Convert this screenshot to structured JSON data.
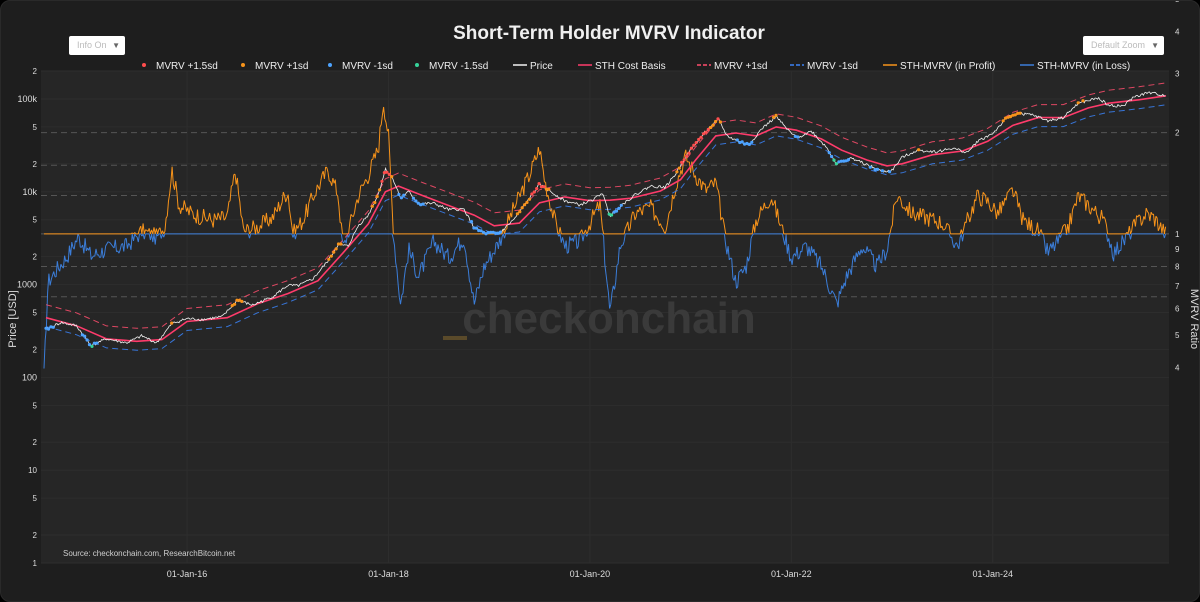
{
  "controls": {
    "left_dropdown": "Info On",
    "right_dropdown": "Default Zoom"
  },
  "watermark": "checkonchain",
  "source": "Source: checkonchain.com, ResearchBitcoin.net",
  "colors": {
    "background": "#1e1e1e",
    "plot_bg": "#262626",
    "price": "#f2f2f2",
    "cost_basis": "#ff3b6b",
    "band_upper": "#ff4d6d",
    "band_lower": "#3b82f6",
    "profit": "#f7931a",
    "loss": "#3b7dd8",
    "plus15": "#ff4d4d",
    "plus1": "#f7931a",
    "minus1": "#4da3ff",
    "minus15": "#36d39a"
  },
  "chart_data": {
    "type": "line",
    "title": "Short-Term Holder MVRV Indicator",
    "ylabel": "Price [USD]",
    "y2label": "MVRV Ratio",
    "x_ticks": [
      "01-Jan-16",
      "01-Jan-18",
      "01-Jan-20",
      "01-Jan-22",
      "01-Jan-24"
    ],
    "x_range": [
      2014.55,
      2025.75
    ],
    "y_left_range": [
      1,
      200000
    ],
    "y_left_ticks": [
      {
        "v": 1,
        "l": "1"
      },
      {
        "v": 2,
        "l": "2"
      },
      {
        "v": 5,
        "l": "5"
      },
      {
        "v": 10,
        "l": "10"
      },
      {
        "v": 20,
        "l": "2"
      },
      {
        "v": 50,
        "l": "5"
      },
      {
        "v": 100,
        "l": "100"
      },
      {
        "v": 200,
        "l": "2"
      },
      {
        "v": 500,
        "l": "5"
      },
      {
        "v": 1000,
        "l": "1000"
      },
      {
        "v": 2000,
        "l": "2"
      },
      {
        "v": 5000,
        "l": "5"
      },
      {
        "v": 10000,
        "l": "10k"
      },
      {
        "v": 20000,
        "l": "2"
      },
      {
        "v": 50000,
        "l": "5"
      },
      {
        "v": 100000,
        "l": "100k"
      },
      {
        "v": 200000,
        "l": "2"
      }
    ],
    "y_right_range": [
      0.105,
      3.05
    ],
    "y_right_ticks": [
      {
        "v": 4,
        "l": "4"
      },
      {
        "v": 5,
        "l": "5"
      },
      {
        "v": 6,
        "l": "6"
      },
      {
        "v": 7,
        "l": "7"
      },
      {
        "v": 8,
        "l": "8"
      },
      {
        "v": 9,
        "l": "9"
      },
      {
        "v": 10,
        "l": "10"
      }
    ],
    "y_right_ticks_lower": [
      {
        "v": 0.4,
        "l": "4"
      },
      {
        "v": 0.5,
        "l": "5"
      },
      {
        "v": 0.6,
        "l": "6"
      },
      {
        "v": 0.7,
        "l": "7"
      },
      {
        "v": 0.8,
        "l": "8"
      },
      {
        "v": 0.9,
        "l": "9"
      },
      {
        "v": 1,
        "l": "1"
      },
      {
        "v": 2,
        "l": "2"
      },
      {
        "v": 3,
        "l": "3"
      }
    ],
    "mvrv_reference_lines": [
      2.0,
      1.6,
      1.3,
      1.0,
      0.8,
      0.65
    ],
    "legend": [
      {
        "label": "MVRV +1.5sd",
        "kind": "dot",
        "color": "#ff4d4d"
      },
      {
        "label": "MVRV +1sd",
        "kind": "dot",
        "color": "#f7931a"
      },
      {
        "label": "MVRV -1sd",
        "kind": "dot",
        "color": "#4da3ff"
      },
      {
        "label": "MVRV -1.5sd",
        "kind": "dot",
        "color": "#36d39a"
      },
      {
        "label": "Price",
        "kind": "line",
        "color": "#f2f2f2"
      },
      {
        "label": "STH Cost Basis",
        "kind": "line",
        "color": "#ff3b6b"
      },
      {
        "label": "MVRV +1sd",
        "kind": "dash",
        "color": "#ff4d6d"
      },
      {
        "label": "MVRV -1sd",
        "kind": "dash",
        "color": "#3b82f6"
      },
      {
        "label": "STH-MVRV (in Profit)",
        "kind": "line",
        "color": "#f7931a"
      },
      {
        "label": "STH-MVRV (in Loss)",
        "kind": "line",
        "color": "#3b7dd8"
      }
    ],
    "price_series": [
      [
        2014.6,
        330
      ],
      [
        2014.75,
        390
      ],
      [
        2014.9,
        360
      ],
      [
        2015.05,
        220
      ],
      [
        2015.2,
        260
      ],
      [
        2015.4,
        235
      ],
      [
        2015.55,
        280
      ],
      [
        2015.7,
        235
      ],
      [
        2015.85,
        380
      ],
      [
        2016.0,
        430
      ],
      [
        2016.15,
        420
      ],
      [
        2016.35,
        450
      ],
      [
        2016.5,
        680
      ],
      [
        2016.65,
        600
      ],
      [
        2016.85,
        740
      ],
      [
        2017.0,
        980
      ],
      [
        2017.1,
        970
      ],
      [
        2017.25,
        1150
      ],
      [
        2017.4,
        1800
      ],
      [
        2017.5,
        2700
      ],
      [
        2017.6,
        2600
      ],
      [
        2017.7,
        4300
      ],
      [
        2017.8,
        5600
      ],
      [
        2017.9,
        9500
      ],
      [
        2017.97,
        17500
      ],
      [
        2018.05,
        13500
      ],
      [
        2018.12,
        8500
      ],
      [
        2018.2,
        10000
      ],
      [
        2018.3,
        7400
      ],
      [
        2018.45,
        7500
      ],
      [
        2018.6,
        6400
      ],
      [
        2018.75,
        6500
      ],
      [
        2018.85,
        4100
      ],
      [
        2018.95,
        3600
      ],
      [
        2019.1,
        3550
      ],
      [
        2019.25,
        5100
      ],
      [
        2019.4,
        8500
      ],
      [
        2019.5,
        12000
      ],
      [
        2019.6,
        10200
      ],
      [
        2019.75,
        8000
      ],
      [
        2019.9,
        7200
      ],
      [
        2020.05,
        8400
      ],
      [
        2020.12,
        9800
      ],
      [
        2020.2,
        5500
      ],
      [
        2020.3,
        7000
      ],
      [
        2020.45,
        9300
      ],
      [
        2020.6,
        11500
      ],
      [
        2020.75,
        11200
      ],
      [
        2020.85,
        15500
      ],
      [
        2020.95,
        24000
      ],
      [
        2021.05,
        33000
      ],
      [
        2021.15,
        45000
      ],
      [
        2021.28,
        60000
      ],
      [
        2021.36,
        40000
      ],
      [
        2021.5,
        34000
      ],
      [
        2021.58,
        32000
      ],
      [
        2021.7,
        47000
      ],
      [
        2021.85,
        65000
      ],
      [
        2021.95,
        48000
      ],
      [
        2022.05,
        38000
      ],
      [
        2022.2,
        45000
      ],
      [
        2022.35,
        30000
      ],
      [
        2022.45,
        20000
      ],
      [
        2022.6,
        23000
      ],
      [
        2022.75,
        19500
      ],
      [
        2022.9,
        16500
      ],
      [
        2023.0,
        17000
      ],
      [
        2023.1,
        23500
      ],
      [
        2023.25,
        28000
      ],
      [
        2023.45,
        27000
      ],
      [
        2023.6,
        29500
      ],
      [
        2023.75,
        26500
      ],
      [
        2023.85,
        35000
      ],
      [
        2024.0,
        42500
      ],
      [
        2024.15,
        64000
      ],
      [
        2024.25,
        70000
      ],
      [
        2024.4,
        67000
      ],
      [
        2024.55,
        58000
      ],
      [
        2024.7,
        63000
      ],
      [
        2024.85,
        90000
      ],
      [
        2024.97,
        97000
      ],
      [
        2025.05,
        102000
      ],
      [
        2025.15,
        85000
      ],
      [
        2025.3,
        84000
      ],
      [
        2025.4,
        105000
      ],
      [
        2025.55,
        117000
      ],
      [
        2025.65,
        112000
      ],
      [
        2025.72,
        108000
      ]
    ],
    "cost_basis_series": [
      [
        2014.6,
        440
      ],
      [
        2014.9,
        360
      ],
      [
        2015.2,
        260
      ],
      [
        2015.5,
        245
      ],
      [
        2015.75,
        255
      ],
      [
        2016.0,
        400
      ],
      [
        2016.4,
        440
      ],
      [
        2016.7,
        620
      ],
      [
        2017.0,
        800
      ],
      [
        2017.3,
        1100
      ],
      [
        2017.55,
        2200
      ],
      [
        2017.8,
        4500
      ],
      [
        2017.97,
        10000
      ],
      [
        2018.1,
        11500
      ],
      [
        2018.35,
        9000
      ],
      [
        2018.6,
        7100
      ],
      [
        2018.85,
        5600
      ],
      [
        2019.05,
        4300
      ],
      [
        2019.3,
        4600
      ],
      [
        2019.5,
        7600
      ],
      [
        2019.75,
        8800
      ],
      [
        2020.0,
        8000
      ],
      [
        2020.2,
        8100
      ],
      [
        2020.4,
        8500
      ],
      [
        2020.7,
        10200
      ],
      [
        2020.9,
        13500
      ],
      [
        2021.05,
        22000
      ],
      [
        2021.25,
        40000
      ],
      [
        2021.45,
        43000
      ],
      [
        2021.65,
        40000
      ],
      [
        2021.85,
        50000
      ],
      [
        2022.05,
        46000
      ],
      [
        2022.3,
        37000
      ],
      [
        2022.5,
        28000
      ],
      [
        2022.75,
        22000
      ],
      [
        2022.95,
        19000
      ],
      [
        2023.1,
        20000
      ],
      [
        2023.4,
        25000
      ],
      [
        2023.7,
        27500
      ],
      [
        2023.95,
        35000
      ],
      [
        2024.2,
        52000
      ],
      [
        2024.45,
        63000
      ],
      [
        2024.7,
        63000
      ],
      [
        2024.95,
        80000
      ],
      [
        2025.15,
        90000
      ],
      [
        2025.45,
        98000
      ],
      [
        2025.72,
        108000
      ]
    ],
    "mvrv_series": [
      [
        2014.58,
        0.38
      ],
      [
        2014.62,
        0.72
      ],
      [
        2014.7,
        0.78
      ],
      [
        2014.8,
        0.85
      ],
      [
        2014.92,
        0.98
      ],
      [
        2015.05,
        0.86
      ],
      [
        2015.2,
        0.9
      ],
      [
        2015.4,
        0.92
      ],
      [
        2015.55,
        1.02
      ],
      [
        2015.7,
        0.98
      ],
      [
        2015.78,
        1.05
      ],
      [
        2015.85,
        1.55
      ],
      [
        2015.92,
        1.22
      ],
      [
        2016.05,
        1.15
      ],
      [
        2016.25,
        1.1
      ],
      [
        2016.4,
        1.12
      ],
      [
        2016.48,
        1.55
      ],
      [
        2016.56,
        1.02
      ],
      [
        2016.7,
        1.05
      ],
      [
        2016.85,
        1.12
      ],
      [
        2017.0,
        1.35
      ],
      [
        2017.05,
        1.0
      ],
      [
        2017.15,
        1.1
      ],
      [
        2017.28,
        1.35
      ],
      [
        2017.4,
        1.55
      ],
      [
        2017.5,
        1.32
      ],
      [
        2017.55,
        0.9
      ],
      [
        2017.7,
        1.3
      ],
      [
        2017.8,
        1.5
      ],
      [
        2017.9,
        1.8
      ],
      [
        2017.95,
        2.5
      ],
      [
        2018.0,
        1.95
      ],
      [
        2018.05,
        1.0
      ],
      [
        2018.12,
        0.62
      ],
      [
        2018.2,
        0.9
      ],
      [
        2018.3,
        0.75
      ],
      [
        2018.45,
        0.95
      ],
      [
        2018.6,
        0.85
      ],
      [
        2018.75,
        0.98
      ],
      [
        2018.85,
        0.62
      ],
      [
        2018.95,
        0.8
      ],
      [
        2019.1,
        0.95
      ],
      [
        2019.25,
        1.2
      ],
      [
        2019.4,
        1.5
      ],
      [
        2019.5,
        1.8
      ],
      [
        2019.55,
        1.45
      ],
      [
        2019.65,
        1.1
      ],
      [
        2019.75,
        0.92
      ],
      [
        2019.9,
        0.95
      ],
      [
        2020.05,
        1.15
      ],
      [
        2020.1,
        1.22
      ],
      [
        2020.2,
        0.58
      ],
      [
        2020.3,
        0.92
      ],
      [
        2020.45,
        1.15
      ],
      [
        2020.6,
        1.2
      ],
      [
        2020.75,
        1.05
      ],
      [
        2020.85,
        1.4
      ],
      [
        2020.95,
        1.7
      ],
      [
        2021.05,
        1.5
      ],
      [
        2021.15,
        1.35
      ],
      [
        2021.25,
        1.42
      ],
      [
        2021.35,
        0.95
      ],
      [
        2021.45,
        0.72
      ],
      [
        2021.55,
        0.8
      ],
      [
        2021.65,
        1.1
      ],
      [
        2021.8,
        1.3
      ],
      [
        2021.9,
        1.05
      ],
      [
        2022.0,
        0.85
      ],
      [
        2022.15,
        0.92
      ],
      [
        2022.3,
        0.8
      ],
      [
        2022.45,
        0.62
      ],
      [
        2022.55,
        0.75
      ],
      [
        2022.7,
        0.92
      ],
      [
        2022.85,
        0.8
      ],
      [
        2022.95,
        0.9
      ],
      [
        2023.05,
        1.3
      ],
      [
        2023.2,
        1.15
      ],
      [
        2023.35,
        1.12
      ],
      [
        2023.5,
        1.08
      ],
      [
        2023.65,
        0.92
      ],
      [
        2023.75,
        1.1
      ],
      [
        2023.85,
        1.3
      ],
      [
        2023.95,
        1.25
      ],
      [
        2024.05,
        1.15
      ],
      [
        2024.2,
        1.35
      ],
      [
        2024.3,
        1.1
      ],
      [
        2024.45,
        1.02
      ],
      [
        2024.55,
        0.88
      ],
      [
        2024.65,
        0.95
      ],
      [
        2024.75,
        1.05
      ],
      [
        2024.85,
        1.3
      ],
      [
        2024.95,
        1.22
      ],
      [
        2025.1,
        1.1
      ],
      [
        2025.2,
        0.88
      ],
      [
        2025.3,
        0.95
      ],
      [
        2025.4,
        1.05
      ],
      [
        2025.52,
        1.15
      ],
      [
        2025.6,
        1.12
      ],
      [
        2025.72,
        1.0
      ]
    ]
  }
}
